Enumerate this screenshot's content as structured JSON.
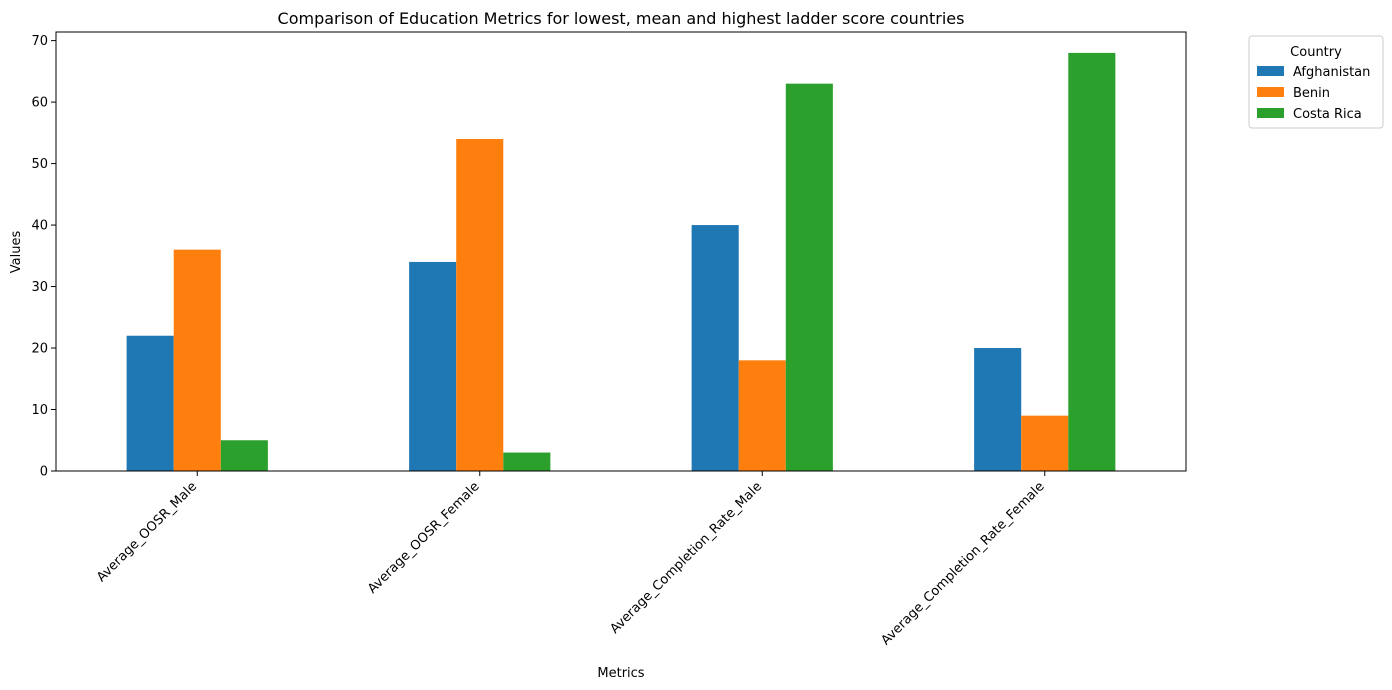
{
  "chart_data": {
    "type": "bar",
    "title": "Comparison of Education Metrics for lowest, mean and highest ladder score countries",
    "xlabel": "Metrics",
    "ylabel": "Values",
    "categories": [
      "Average_OOSR_Male",
      "Average_OOSR_Female",
      "Average_Completion_Rate_Male",
      "Average_Completion_Rate_Female"
    ],
    "series": [
      {
        "name": "Afghanistan",
        "color": "#1f77b4",
        "values": [
          22,
          34,
          40,
          20
        ]
      },
      {
        "name": "Benin",
        "color": "#ff7f0e",
        "values": [
          36,
          54,
          18,
          9
        ]
      },
      {
        "name": "Costa Rica",
        "color": "#2ca02c",
        "values": [
          5,
          3,
          63,
          68
        ]
      }
    ],
    "ylim": [
      0,
      71.4
    ],
    "yticks": [
      0,
      10,
      20,
      30,
      40,
      50,
      60,
      70
    ],
    "grid": false,
    "legend": {
      "title": "Country",
      "placement": "outside-top-right"
    }
  }
}
